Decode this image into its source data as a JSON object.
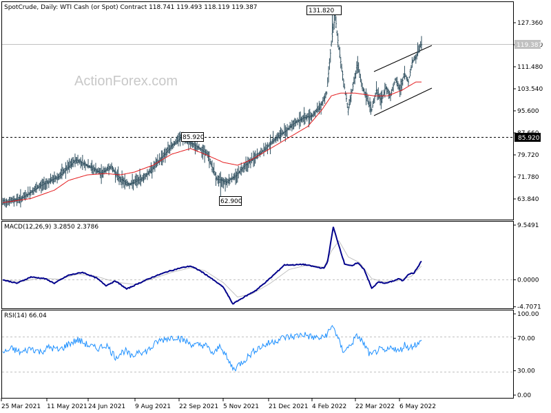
{
  "chart_data": {
    "type": "ohlc",
    "watermark": "ActionForex.com",
    "price_panel": {
      "title": "SpotCrude, Daily:  WTI Cash (or Spot) Contract  118.741 119.493 118.119 119.387",
      "ylim": [
        59.4,
        134.8
      ],
      "y_ticks": [
        "127.360",
        "119.420",
        "111.480",
        "103.540",
        "95.600",
        "87.660",
        "79.720",
        "71.780",
        "63.840"
      ],
      "current_price": "119.387",
      "reference_level": "85.920",
      "callouts": [
        "131.820",
        "85.920",
        "62.900"
      ],
      "sma_color": "#e41a1c",
      "bar_color": "#2f4f5f"
    },
    "macd_panel": {
      "title": "MACD(12,26,9) 3.2850 2.3786",
      "ylim": [
        -5.2,
        10.0
      ],
      "y_ticks": [
        "9.5491",
        "0.0000",
        "-4.7071"
      ],
      "macd_color": "#00008b",
      "signal_color": "#c0c0c0"
    },
    "rsi_panel": {
      "title": "RSI(14) 66.04",
      "ylim": [
        0,
        100
      ],
      "y_ticks": [
        "100.00",
        "70.00",
        "30.00",
        "0.00"
      ],
      "line_color": "#1e90ff"
    },
    "x_labels": [
      "25 Mar 2021",
      "11 May 2021",
      "24 Jun 2021",
      "9 Aug 2021",
      "22 Sep 2021",
      "5 Nov 2021",
      "21 Dec 2021",
      "4 Feb 2022",
      "22 Mar 2022",
      "6 May 2022"
    ],
    "price_key": [
      [
        0,
        62.5
      ],
      [
        20,
        64
      ],
      [
        40,
        68.5
      ],
      [
        60,
        72
      ],
      [
        78,
        78
      ],
      [
        95,
        75
      ],
      [
        105,
        73
      ],
      [
        115,
        75.5
      ],
      [
        125,
        71
      ],
      [
        135,
        69
      ],
      [
        150,
        71.5
      ],
      [
        160,
        75
      ],
      [
        170,
        79
      ],
      [
        180,
        83
      ],
      [
        190,
        86
      ],
      [
        200,
        84
      ],
      [
        210,
        82
      ],
      [
        218,
        80
      ],
      [
        228,
        71
      ],
      [
        238,
        70
      ],
      [
        248,
        72
      ],
      [
        258,
        76
      ],
      [
        270,
        79
      ],
      [
        280,
        82
      ],
      [
        290,
        85.5
      ],
      [
        300,
        88
      ],
      [
        310,
        91
      ],
      [
        320,
        93
      ],
      [
        330,
        94
      ],
      [
        338,
        97
      ],
      [
        345,
        102
      ],
      [
        350,
        120
      ],
      [
        354,
        130
      ],
      [
        358,
        118
      ],
      [
        364,
        104
      ],
      [
        368,
        96
      ],
      [
        372,
        103
      ],
      [
        378,
        112
      ],
      [
        383,
        104
      ],
      [
        388,
        100
      ],
      [
        393,
        96
      ],
      [
        398,
        103
      ],
      [
        403,
        99
      ],
      [
        408,
        104
      ],
      [
        413,
        101
      ],
      [
        418,
        107
      ],
      [
        423,
        103
      ],
      [
        428,
        109
      ],
      [
        432,
        106
      ],
      [
        436,
        113
      ],
      [
        440,
        115
      ],
      [
        445,
        119.4
      ]
    ],
    "sma_key": [
      [
        0,
        62.5
      ],
      [
        30,
        64
      ],
      [
        55,
        67
      ],
      [
        70,
        70.5
      ],
      [
        90,
        72.5
      ],
      [
        110,
        73
      ],
      [
        125,
        72.5
      ],
      [
        140,
        73.5
      ],
      [
        160,
        76
      ],
      [
        180,
        80
      ],
      [
        200,
        82
      ],
      [
        215,
        80
      ],
      [
        235,
        77
      ],
      [
        250,
        76
      ],
      [
        265,
        78
      ],
      [
        285,
        82
      ],
      [
        305,
        86
      ],
      [
        325,
        90
      ],
      [
        340,
        96
      ],
      [
        350,
        101
      ],
      [
        360,
        102
      ],
      [
        375,
        102
      ],
      [
        395,
        101
      ],
      [
        410,
        101
      ],
      [
        425,
        103
      ],
      [
        440,
        106
      ]
    ],
    "macd_key": [
      [
        0,
        0
      ],
      [
        15,
        -0.6
      ],
      [
        30,
        0.5
      ],
      [
        45,
        0.2
      ],
      [
        55,
        -0.6
      ],
      [
        70,
        0.8
      ],
      [
        85,
        1.3
      ],
      [
        100,
        0.3
      ],
      [
        110,
        -1.0
      ],
      [
        120,
        -0.2
      ],
      [
        132,
        -1.6
      ],
      [
        145,
        -0.6
      ],
      [
        160,
        0.5
      ],
      [
        175,
        1.4
      ],
      [
        190,
        2.1
      ],
      [
        200,
        2.4
      ],
      [
        210,
        1.6
      ],
      [
        220,
        0.5
      ],
      [
        235,
        -1.3
      ],
      [
        245,
        -4.2
      ],
      [
        255,
        -3.2
      ],
      [
        270,
        -1.8
      ],
      [
        285,
        0.3
      ],
      [
        300,
        2.6
      ],
      [
        310,
        2.6
      ],
      [
        320,
        2.7
      ],
      [
        335,
        2.2
      ],
      [
        342,
        2.0
      ],
      [
        346,
        3.2
      ],
      [
        352,
        9.2
      ],
      [
        358,
        6.0
      ],
      [
        364,
        2.8
      ],
      [
        368,
        2.6
      ],
      [
        372,
        2.4
      ],
      [
        378,
        3.0
      ],
      [
        385,
        1.8
      ],
      [
        393,
        -1.5
      ],
      [
        400,
        -0.4
      ],
      [
        408,
        -0.6
      ],
      [
        416,
        -0.2
      ],
      [
        422,
        0.2
      ],
      [
        426,
        -0.2
      ],
      [
        432,
        1.0
      ],
      [
        438,
        1.2
      ],
      [
        442,
        2.2
      ],
      [
        446,
        3.3
      ]
    ],
    "signal_key": [
      [
        0,
        0
      ],
      [
        20,
        -0.3
      ],
      [
        40,
        0.3
      ],
      [
        60,
        0.1
      ],
      [
        80,
        1.0
      ],
      [
        100,
        0.6
      ],
      [
        120,
        -0.4
      ],
      [
        140,
        -0.8
      ],
      [
        160,
        0.2
      ],
      [
        180,
        1.3
      ],
      [
        200,
        2.1
      ],
      [
        215,
        1.6
      ],
      [
        235,
        -0.5
      ],
      [
        250,
        -3.0
      ],
      [
        265,
        -2.5
      ],
      [
        285,
        -0.6
      ],
      [
        305,
        1.8
      ],
      [
        325,
        2.6
      ],
      [
        342,
        2.2
      ],
      [
        350,
        5.0
      ],
      [
        358,
        6.8
      ],
      [
        368,
        4.0
      ],
      [
        380,
        3.0
      ],
      [
        393,
        0.2
      ],
      [
        405,
        -0.3
      ],
      [
        420,
        -0.2
      ],
      [
        435,
        0.6
      ],
      [
        446,
        2.4
      ]
    ],
    "rsi_key": [
      [
        0,
        52
      ],
      [
        10,
        57
      ],
      [
        20,
        52
      ],
      [
        30,
        58
      ],
      [
        40,
        53
      ],
      [
        50,
        59
      ],
      [
        60,
        55
      ],
      [
        70,
        63
      ],
      [
        80,
        68
      ],
      [
        90,
        62
      ],
      [
        100,
        57
      ],
      [
        110,
        62
      ],
      [
        120,
        47
      ],
      [
        130,
        55
      ],
      [
        138,
        46
      ],
      [
        145,
        56
      ],
      [
        150,
        52
      ],
      [
        158,
        58
      ],
      [
        165,
        66
      ],
      [
        175,
        70
      ],
      [
        185,
        72
      ],
      [
        195,
        66
      ],
      [
        205,
        61
      ],
      [
        215,
        62
      ],
      [
        225,
        50
      ],
      [
        232,
        62
      ],
      [
        240,
        42
      ],
      [
        246,
        32
      ],
      [
        252,
        38
      ],
      [
        260,
        46
      ],
      [
        270,
        57
      ],
      [
        280,
        62
      ],
      [
        290,
        67
      ],
      [
        300,
        71
      ],
      [
        310,
        72
      ],
      [
        320,
        75
      ],
      [
        330,
        71
      ],
      [
        340,
        70
      ],
      [
        346,
        76
      ],
      [
        352,
        86
      ],
      [
        356,
        72
      ],
      [
        362,
        55
      ],
      [
        368,
        58
      ],
      [
        372,
        65
      ],
      [
        378,
        73
      ],
      [
        384,
        64
      ],
      [
        392,
        48
      ],
      [
        400,
        56
      ],
      [
        408,
        53
      ],
      [
        415,
        60
      ],
      [
        422,
        53
      ],
      [
        428,
        62
      ],
      [
        434,
        58
      ],
      [
        438,
        63
      ],
      [
        442,
        62
      ],
      [
        446,
        66
      ]
    ]
  }
}
